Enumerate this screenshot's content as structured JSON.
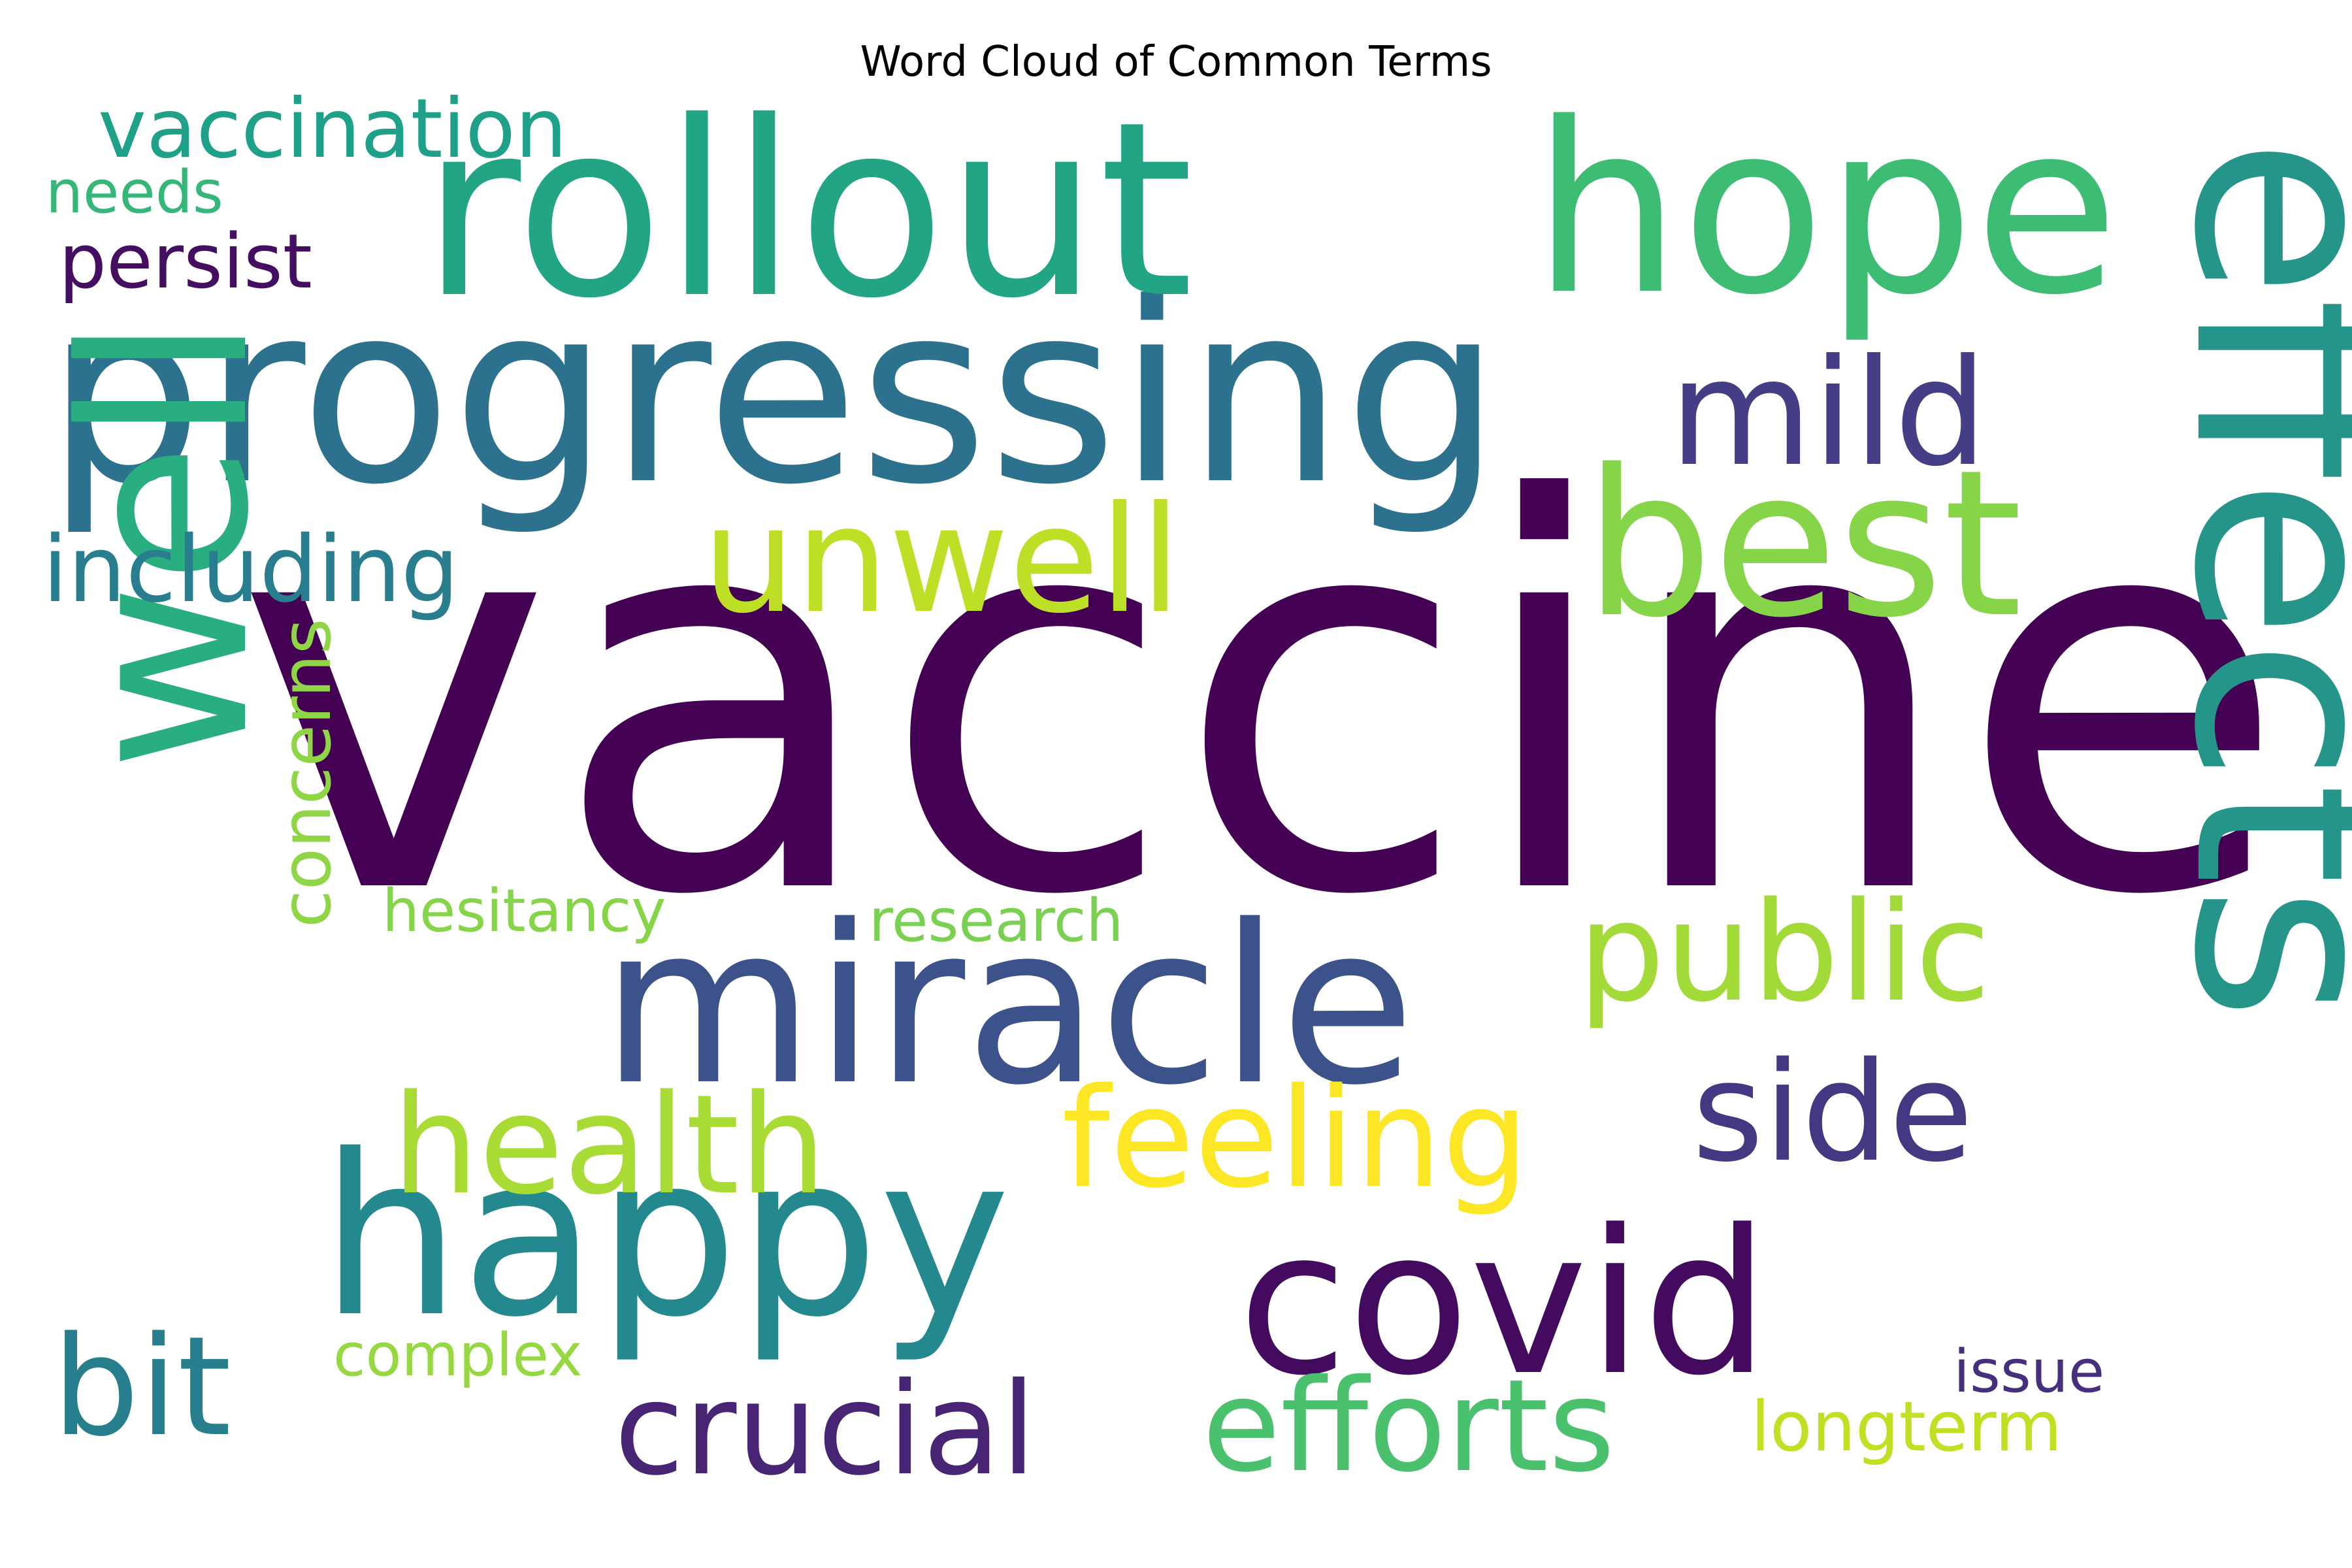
{
  "chart_data": {
    "type": "wordcloud",
    "title": "Word Cloud of Common Terms",
    "words": [
      {
        "text": "vaccine",
        "weight": 1.0,
        "color": "#440154"
      },
      {
        "text": "effects",
        "weight": 0.62,
        "color": "#25958a"
      },
      {
        "text": "progressing",
        "weight": 0.58,
        "color": "#2c728e"
      },
      {
        "text": "rollout",
        "weight": 0.56,
        "color": "#21a585"
      },
      {
        "text": "hope",
        "weight": 0.55,
        "color": "#3dbc74"
      },
      {
        "text": "well",
        "weight": 0.52,
        "color": "#29af7f"
      },
      {
        "text": "miracle",
        "weight": 0.5,
        "color": "#3b528b"
      },
      {
        "text": "happy",
        "weight": 0.5,
        "color": "#23898e"
      },
      {
        "text": "best",
        "weight": 0.48,
        "color": "#86d549"
      },
      {
        "text": "covid",
        "weight": 0.46,
        "color": "#440a5f"
      },
      {
        "text": "mild",
        "weight": 0.33,
        "color": "#433e85"
      },
      {
        "text": "unwell",
        "weight": 0.33,
        "color": "#bddf26"
      },
      {
        "text": "public",
        "weight": 0.31,
        "color": "#a2da37"
      },
      {
        "text": "feeling",
        "weight": 0.31,
        "color": "#fde725"
      },
      {
        "text": "side",
        "weight": 0.31,
        "color": "#453882"
      },
      {
        "text": "health",
        "weight": 0.31,
        "color": "#a8db34"
      },
      {
        "text": "bit",
        "weight": 0.3,
        "color": "#277f8e"
      },
      {
        "text": "crucial",
        "weight": 0.29,
        "color": "#482475"
      },
      {
        "text": "efforts",
        "weight": 0.29,
        "color": "#4ac16d"
      },
      {
        "text": "including",
        "weight": 0.2,
        "color": "#287d8e"
      },
      {
        "text": "vaccination",
        "weight": 0.18,
        "color": "#1fa088"
      },
      {
        "text": "persist",
        "weight": 0.17,
        "color": "#440f61"
      },
      {
        "text": "concerns",
        "weight": 0.16,
        "color": "#8ed645"
      },
      {
        "text": "longterm",
        "weight": 0.15,
        "color": "#c2df23"
      },
      {
        "text": "needs",
        "weight": 0.13,
        "color": "#35b779"
      },
      {
        "text": "hesitancy",
        "weight": 0.13,
        "color": "#86d549"
      },
      {
        "text": "research",
        "weight": 0.13,
        "color": "#7ad151"
      },
      {
        "text": "complex",
        "weight": 0.13,
        "color": "#95d840"
      },
      {
        "text": "issue",
        "weight": 0.12,
        "color": "#46307e"
      }
    ]
  }
}
